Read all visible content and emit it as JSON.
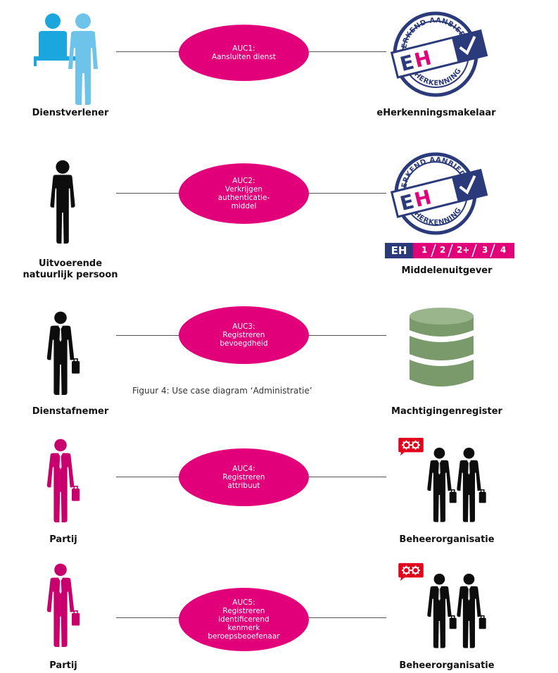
{
  "colors": {
    "use_case_fill": "#e2007a",
    "actor_blue_dark": "#1ba6dd",
    "actor_blue_light": "#6ec3ea",
    "actor_black": "#0d0d0d",
    "actor_magenta": "#c8006e",
    "badge_navy": "#2b3a7a",
    "database_green": "#7a9a6b",
    "gear_red": "#e2001a"
  },
  "caption": "Figuur 4: Use case diagram ‘Administratie’",
  "badge": {
    "arc_top": "ERKEND AANBIEDER",
    "arc_bottom": "eHERKENNING",
    "mark": "EH",
    "levels": [
      "1",
      "2",
      "2+",
      "3",
      "4"
    ]
  },
  "rows": [
    {
      "left_actor": "Dienstverlener",
      "left_icon": "desk-user-icon",
      "use_case": [
        "AUC1:",
        "Aansluiten dienst"
      ],
      "right_actor": "eHerkenningsmakelaar",
      "right_icon": "eherkenning-badge-icon"
    },
    {
      "left_actor_lines": [
        "Uitvoerende",
        "natuurlijk persoon"
      ],
      "left_icon": "person-icon",
      "use_case": [
        "AUC2:",
        "Verkrijgen",
        "authenticatie-",
        "middel"
      ],
      "right_actor": "Middelenuitgever",
      "right_icon": "eherkenning-badge-levels-icon"
    },
    {
      "left_actor": "Dienstafnemer",
      "left_icon": "business-person-icon",
      "use_case": [
        "AUC3:",
        "Registreren",
        "bevoegdheid"
      ],
      "right_actor": "Machtigingenregister",
      "right_icon": "database-icon"
    },
    {
      "left_actor": "Partij",
      "left_icon": "business-person-magenta-icon",
      "use_case": [
        "AUC4:",
        "Registreren",
        "attribuut"
      ],
      "right_actor": "Beheerorganisatie",
      "right_icon": "organisation-gears-icon"
    },
    {
      "left_actor": "Partij",
      "left_icon": "business-person-magenta-icon",
      "use_case": [
        "AUC5:",
        "Registreren",
        "identificerend",
        "kenmerk",
        "beroepsbeoefenaar"
      ],
      "right_actor": "Beheerorganisatie",
      "right_icon": "organisation-gears-icon"
    }
  ]
}
